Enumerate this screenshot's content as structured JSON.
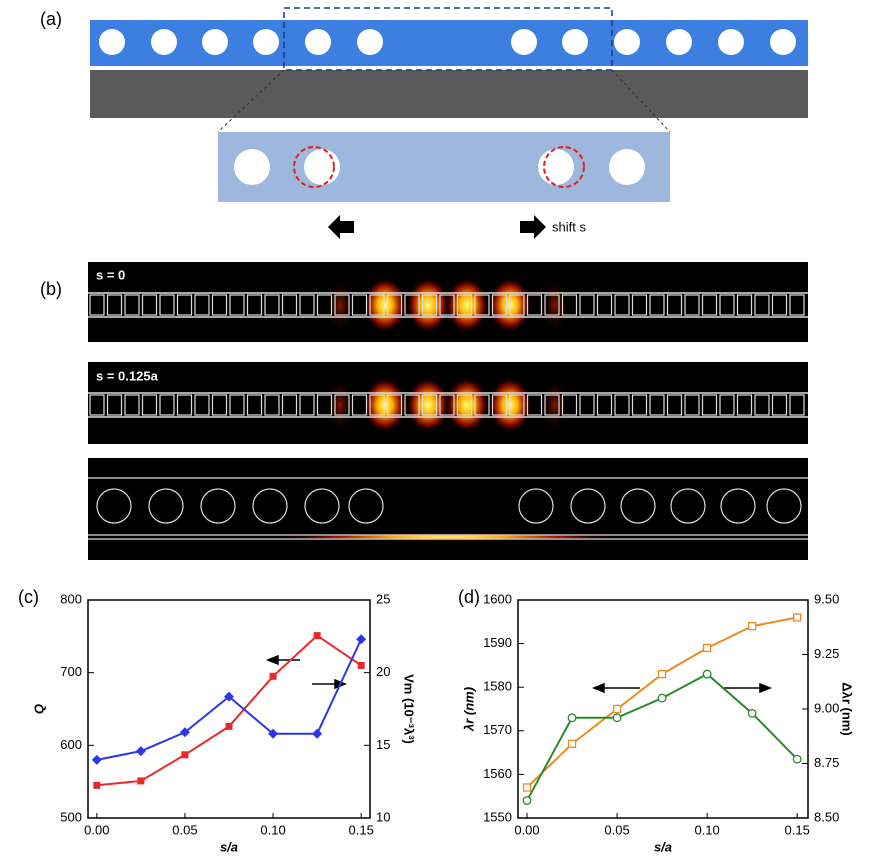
{
  "panel_labels": [
    "(a)",
    "(b)",
    "(c)",
    "(d)"
  ],
  "shift_label": "shift s",
  "field_labels": [
    "s = 0",
    "s = 0.125a"
  ],
  "chart_data": [
    {
      "type": "line",
      "x_label": "s/a",
      "y_label": "Q",
      "y2_label": "Vm (10⁻³λ³)",
      "x": [
        0,
        0.025,
        0.05,
        0.075,
        0.1,
        0.125,
        0.15
      ],
      "xlim": [
        -0.005,
        0.155
      ],
      "xticks": [
        {
          "value": 0,
          "label": "0.00"
        },
        {
          "value": 0.05,
          "label": "0.05"
        },
        {
          "value": 0.1,
          "label": "0.10"
        },
        {
          "value": 0.15,
          "label": "0.15"
        }
      ],
      "ylim": [
        500,
        800
      ],
      "yticks": [
        500,
        600,
        700,
        800
      ],
      "y2lim": [
        10,
        25
      ],
      "y2ticks": [
        10,
        15,
        20,
        25
      ],
      "series": [
        {
          "name": "Q",
          "color": "#e8282a",
          "marker": "square",
          "values": [
            545,
            551,
            587,
            626,
            695,
            751,
            710
          ]
        },
        {
          "name": "Vm",
          "color": "#2a36e8",
          "marker": "diamond",
          "axis": "y2",
          "values": [
            14,
            14.6,
            15.9,
            18.35,
            15.8,
            15.8,
            22.3
          ]
        }
      ]
    },
    {
      "type": "line",
      "x_label": "s/a",
      "y_label": "λr (nm)",
      "y2_label": "Δλr (nm)",
      "x": [
        0,
        0.025,
        0.05,
        0.075,
        0.1,
        0.125,
        0.15
      ],
      "xlim": [
        -0.005,
        0.156
      ],
      "xticks": [
        {
          "value": 0,
          "label": "0.00"
        },
        {
          "value": 0.05,
          "label": "0.05"
        },
        {
          "value": 0.1,
          "label": "0.10"
        },
        {
          "value": 0.15,
          "label": "0.15"
        }
      ],
      "ylim": [
        1550,
        1600
      ],
      "yticks": [
        1550,
        1560,
        1570,
        1580,
        1590,
        1600
      ],
      "y2lim": [
        8.5,
        9.5
      ],
      "y2ticks": [
        {
          "value": 8.5,
          "label": "8.50"
        },
        {
          "value": 8.75,
          "label": "8.75"
        },
        {
          "value": 9,
          "label": "9.00"
        },
        {
          "value": 9.25,
          "label": "9.25"
        },
        {
          "value": 9.5,
          "label": "9.50"
        }
      ],
      "series": [
        {
          "name": "λr",
          "color": "#f08a1e",
          "marker": "open-square",
          "values": [
            1557,
            1567,
            1575,
            1583,
            1589,
            1594,
            1596
          ]
        },
        {
          "name": "Δλr",
          "color": "#2a8a2a",
          "marker": "open-circle",
          "axis": "y2",
          "values": [
            8.58,
            8.96,
            8.96,
            9.05,
            9.16,
            8.98,
            8.77
          ]
        }
      ]
    }
  ]
}
